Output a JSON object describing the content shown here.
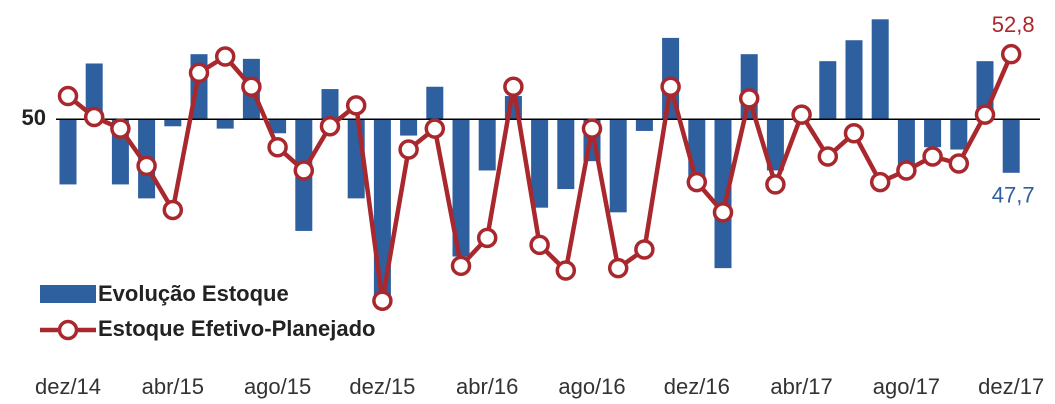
{
  "chart_data": {
    "type": "bar-line",
    "categories": [
      "dez/14",
      null,
      null,
      null,
      "abr/15",
      null,
      null,
      null,
      "ago/15",
      null,
      null,
      null,
      "dez/15",
      null,
      null,
      null,
      "abr/16",
      null,
      null,
      null,
      "ago/16",
      null,
      null,
      null,
      "dez/16",
      null,
      null,
      null,
      "abr/17",
      null,
      null,
      null,
      "ago/17",
      null,
      null,
      null,
      "dez/17"
    ],
    "series": [
      {
        "name": "Evolução Estoque",
        "type": "bar",
        "color": "#2e5f9e",
        "values": [
          47.2,
          52.4,
          47.2,
          46.6,
          49.7,
          52.8,
          49.6,
          52.6,
          49.4,
          45.2,
          51.3,
          46.6,
          42.3,
          49.3,
          51.4,
          44.1,
          47.8,
          51.0,
          46.2,
          47.0,
          48.2,
          46.0,
          49.5,
          53.5,
          47.2,
          43.6,
          52.8,
          47.8,
          50.4,
          52.5,
          53.4,
          54.3,
          47.8,
          48.8,
          48.7,
          52.5,
          47.7
        ],
        "value_labels": [
          null,
          null,
          null,
          null,
          null,
          null,
          null,
          null,
          null,
          null,
          null,
          null,
          null,
          null,
          null,
          null,
          null,
          null,
          null,
          null,
          null,
          null,
          null,
          null,
          null,
          null,
          null,
          null,
          null,
          null,
          null,
          null,
          null,
          null,
          null,
          null,
          "47,7"
        ]
      },
      {
        "name": "Estoque Efetivo-Planejado",
        "type": "line",
        "color": "#a8282e",
        "values": [
          51.0,
          50.1,
          49.6,
          48.0,
          46.1,
          52.0,
          52.7,
          51.4,
          48.8,
          47.8,
          49.7,
          50.6,
          42.2,
          48.7,
          49.6,
          43.7,
          44.9,
          51.4,
          44.6,
          43.5,
          49.6,
          43.6,
          44.4,
          51.4,
          47.3,
          46.0,
          50.9,
          47.2,
          50.2,
          48.4,
          49.4,
          47.3,
          47.8,
          48.4,
          48.1,
          50.2,
          52.8
        ],
        "value_labels": [
          null,
          null,
          null,
          null,
          null,
          null,
          null,
          null,
          null,
          null,
          null,
          null,
          null,
          null,
          null,
          null,
          null,
          null,
          null,
          null,
          null,
          null,
          null,
          null,
          null,
          null,
          null,
          null,
          null,
          null,
          null,
          null,
          null,
          null,
          null,
          null,
          "52,8"
        ]
      }
    ],
    "ylim": [
      41.8,
      54.7
    ],
    "yticks": [
      50
    ],
    "baseline": 50,
    "legend": "bottom-left"
  }
}
